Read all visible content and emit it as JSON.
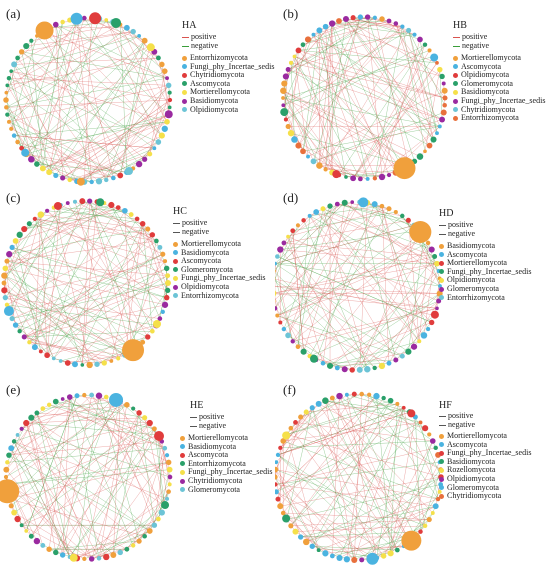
{
  "colors": {
    "positive": "#d9534f",
    "negative": "#3a9e3a"
  },
  "panels": [
    {
      "letter": "(a)",
      "title": "HA",
      "positive": "positive",
      "negative": "negative",
      "legend": [
        {
          "label": "Entorrhizomycota",
          "color": "#f0a03c"
        },
        {
          "label": "Fungi_phy_Incertae_sedis",
          "color": "#4ab3e0"
        },
        {
          "label": "Chytridiomycota",
          "color": "#e03c3c"
        },
        {
          "label": "Ascomycota",
          "color": "#2aa06a"
        },
        {
          "label": "Mortierellomycota",
          "color": "#f5e04a"
        },
        {
          "label": "Basidiomycota",
          "color": "#9a2aa0"
        },
        {
          "label": "Olpidiomycota",
          "color": "#6cc4d6"
        }
      ]
    },
    {
      "letter": "(b)",
      "title": "HB",
      "positive": "positive",
      "negative": "negative",
      "legend": [
        {
          "label": "Mortierellomycota",
          "color": "#f0a03c"
        },
        {
          "label": "Ascomycota",
          "color": "#4ab3e0"
        },
        {
          "label": "Olpidiomycota",
          "color": "#e03c3c"
        },
        {
          "label": "Glomeromycota",
          "color": "#2aa06a"
        },
        {
          "label": "Basidiomycota",
          "color": "#f5e04a"
        },
        {
          "label": "Fungi_phy_Incertae_sedis",
          "color": "#9a2aa0"
        },
        {
          "label": "Chytridiomycota",
          "color": "#6cc4d6"
        },
        {
          "label": "Entorrhizomycota",
          "color": "#e8703c"
        }
      ]
    },
    {
      "letter": "(c)",
      "title": "HC",
      "positive": "positive",
      "negative": "negative",
      "legend": [
        {
          "label": "Mortierellomycota",
          "color": "#f0a03c"
        },
        {
          "label": "Basidiomycota",
          "color": "#4ab3e0"
        },
        {
          "label": "Ascomycota",
          "color": "#e03c3c"
        },
        {
          "label": "Glomeromycota",
          "color": "#2aa06a"
        },
        {
          "label": "Fungi_phy_Incertae_sedis",
          "color": "#f5e04a"
        },
        {
          "label": "Olpidiomycota",
          "color": "#9a2aa0"
        },
        {
          "label": "Entorrhizomycota",
          "color": "#6cc4d6"
        }
      ]
    },
    {
      "letter": "(d)",
      "title": "HD",
      "positive": "positive",
      "negative": "negative",
      "legend": [
        {
          "label": "Basidiomycota",
          "color": "#f0a03c"
        },
        {
          "label": "Ascomycota",
          "color": "#4ab3e0"
        },
        {
          "label": "Mortierellomycota",
          "color": "#e03c3c"
        },
        {
          "label": "Fungi_phy_Incertae_sedis",
          "color": "#2aa06a"
        },
        {
          "label": "Olpidiomycota",
          "color": "#f5e04a"
        },
        {
          "label": "Glomeromycota",
          "color": "#9a2aa0"
        },
        {
          "label": "Entorrhizomycota",
          "color": "#6cc4d6"
        }
      ]
    },
    {
      "letter": "(e)",
      "title": "HE",
      "positive": "positive",
      "negative": "negative",
      "legend": [
        {
          "label": "Mortierellomycota",
          "color": "#f0a03c"
        },
        {
          "label": "Basidiomycota",
          "color": "#4ab3e0"
        },
        {
          "label": "Ascomycota",
          "color": "#e03c3c"
        },
        {
          "label": "Entorrhizomycota",
          "color": "#2aa06a"
        },
        {
          "label": "Fungi_phy_Incertae_sedis",
          "color": "#f5e04a"
        },
        {
          "label": "Chytridiomycota",
          "color": "#9a2aa0"
        },
        {
          "label": "Glomeromycota",
          "color": "#6cc4d6"
        }
      ]
    },
    {
      "letter": "(f)",
      "title": "HF",
      "positive": "positive",
      "negative": "negative",
      "legend": [
        {
          "label": "Mortierellomycota",
          "color": "#f0a03c"
        },
        {
          "label": "Ascomycota",
          "color": "#4ab3e0"
        },
        {
          "label": "Fungi_phy_Incertae_sedis",
          "color": "#e03c3c"
        },
        {
          "label": "Basidiomycota",
          "color": "#2aa06a"
        },
        {
          "label": "Rozellomycota",
          "color": "#f5e04a"
        },
        {
          "label": "Olpidiomycota",
          "color": "#9a2aa0"
        },
        {
          "label": "Glomeromycota",
          "color": "#4ab3e0"
        },
        {
          "label": "Chytridiomycota",
          "color": "#e8703c"
        }
      ]
    }
  ]
}
